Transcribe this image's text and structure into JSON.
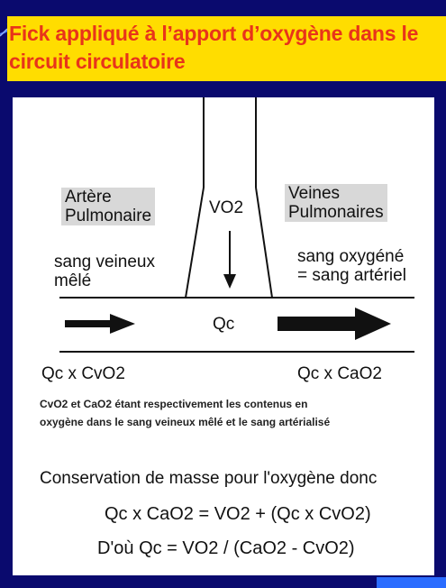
{
  "slide": {
    "title_line1": "Fick appliqué à l’apport d’oxygène dans le",
    "title_line2": "circuit circulatoire"
  },
  "diagram": {
    "artere_line1": "Artère",
    "artere_line2": "Pulmonaire",
    "veines_line1": "Veines",
    "veines_line2": "Pulmonaires",
    "vo2": "VO2",
    "sang_veineux_line1": "sang veineux",
    "sang_veineux_line2": "mêlé",
    "sang_oxygene_line1": "sang oxygéné",
    "sang_oxygene_line2": "= sang artériel",
    "qc": "Qc",
    "qc_cvo2": "Qc x CvO2",
    "qc_cao2": "Qc x CaO2",
    "note_line1": "CvO2 et CaO2  étant respectivement les contenus en",
    "note_line2": "oxygène dans le sang veineux mêlé et le sang artérialisé",
    "conservation": "Conservation de masse pour l'oxygène donc",
    "equation1": "Qc x CaO2 = VO2 + (Qc x CvO2)",
    "equation2": "D'où  Qc  = VO2 / (CaO2 - CvO2)"
  },
  "colors": {
    "background": "#0a0a6e",
    "title_band": "#ffdd00",
    "title_text": "#e8341a",
    "panel": "#ffffff",
    "accent_bar": "#2a6cff"
  }
}
